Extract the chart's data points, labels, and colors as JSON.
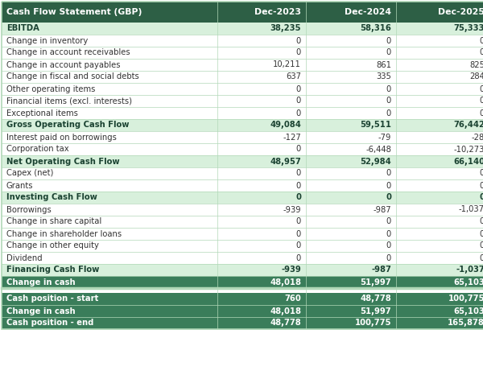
{
  "columns": [
    "Cash Flow Statement (GBP)",
    "Dec-2023",
    "Dec-2024",
    "Dec-2025"
  ],
  "rows": [
    {
      "label": "EBITDA",
      "values": [
        "38,235",
        "58,316",
        "75,333"
      ],
      "style": "bold_green_light"
    },
    {
      "label": "Change in inventory",
      "values": [
        "0",
        "0",
        "0"
      ],
      "style": "normal"
    },
    {
      "label": "Change in account receivables",
      "values": [
        "0",
        "0",
        "0"
      ],
      "style": "normal"
    },
    {
      "label": "Change in account payables",
      "values": [
        "10,211",
        "861",
        "825"
      ],
      "style": "normal"
    },
    {
      "label": "Change in fiscal and social debts",
      "values": [
        "637",
        "335",
        "284"
      ],
      "style": "normal"
    },
    {
      "label": "Other operating items",
      "values": [
        "0",
        "0",
        "0"
      ],
      "style": "normal"
    },
    {
      "label": "Financial items (excl. interests)",
      "values": [
        "0",
        "0",
        "0"
      ],
      "style": "normal"
    },
    {
      "label": "Exceptional items",
      "values": [
        "0",
        "0",
        "0"
      ],
      "style": "normal"
    },
    {
      "label": "Gross Operating Cash Flow",
      "values": [
        "49,084",
        "59,511",
        "76,442"
      ],
      "style": "bold_green_light"
    },
    {
      "label": "Interest paid on borrowings",
      "values": [
        "-127",
        "-79",
        "-28"
      ],
      "style": "normal"
    },
    {
      "label": "Corporation tax",
      "values": [
        "0",
        "-6,448",
        "-10,273"
      ],
      "style": "normal"
    },
    {
      "label": "Net Operating Cash Flow",
      "values": [
        "48,957",
        "52,984",
        "66,140"
      ],
      "style": "bold_green_light"
    },
    {
      "label": "Capex (net)",
      "values": [
        "0",
        "0",
        "0"
      ],
      "style": "normal"
    },
    {
      "label": "Grants",
      "values": [
        "0",
        "0",
        "0"
      ],
      "style": "normal"
    },
    {
      "label": "Investing Cash Flow",
      "values": [
        "0",
        "0",
        "0"
      ],
      "style": "bold_green_light"
    },
    {
      "label": "Borrowings",
      "values": [
        "-939",
        "-987",
        "-1,037"
      ],
      "style": "normal"
    },
    {
      "label": "Change in share capital",
      "values": [
        "0",
        "0",
        "0"
      ],
      "style": "normal"
    },
    {
      "label": "Change in shareholder loans",
      "values": [
        "0",
        "0",
        "0"
      ],
      "style": "normal"
    },
    {
      "label": "Change in other equity",
      "values": [
        "0",
        "0",
        "0"
      ],
      "style": "normal"
    },
    {
      "label": "Dividend",
      "values": [
        "0",
        "0",
        "0"
      ],
      "style": "normal"
    },
    {
      "label": "Financing Cash Flow",
      "values": [
        "-939",
        "-987",
        "-1,037"
      ],
      "style": "bold_green_light"
    },
    {
      "label": "Change in cash",
      "values": [
        "48,018",
        "51,997",
        "65,103"
      ],
      "style": "bold_green_dark"
    },
    {
      "label": "Cash position - start",
      "values": [
        "760",
        "48,778",
        "100,775"
      ],
      "style": "bold_green_dark"
    },
    {
      "label": "Change in cash",
      "values": [
        "48,018",
        "51,997",
        "65,103"
      ],
      "style": "bold_green_dark"
    },
    {
      "label": "Cash position - end",
      "values": [
        "48,778",
        "100,775",
        "165,878"
      ],
      "style": "bold_green_dark"
    }
  ],
  "header_bg": "#2d5f45",
  "header_text": "#ffffff",
  "bold_green_light_bg": "#d8f0dc",
  "bold_green_light_text": "#1b4332",
  "bold_green_dark_bg": "#3a7d5a",
  "bold_green_dark_text": "#ffffff",
  "normal_bg": "#ffffff",
  "normal_text": "#333333",
  "border_color": "#b2d8b8",
  "separator_before_idx": 22
}
